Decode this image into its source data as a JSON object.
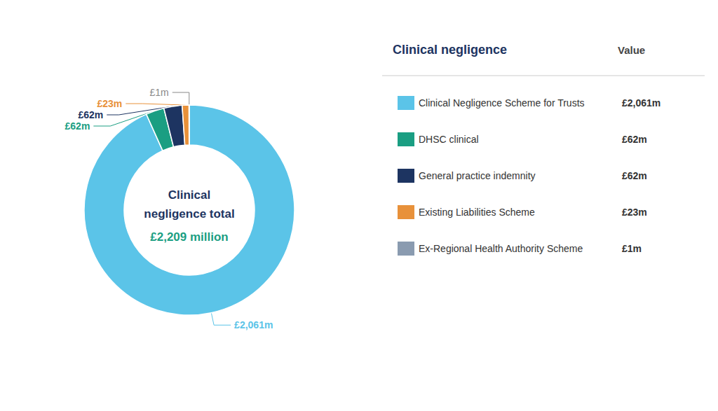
{
  "chart_data": {
    "type": "donut",
    "categories": [
      "Clinical Negligence Scheme for Trusts",
      "DHSC clinical",
      "General practice indemnity",
      "Existing Liabilities Scheme",
      "Ex-Regional Health Authority Scheme"
    ],
    "values": [
      2061,
      62,
      62,
      23,
      1
    ],
    "value_labels": [
      "£2,061m",
      "£62m",
      "£62m",
      "£23m",
      "£1m"
    ],
    "colors": [
      "#5bc4e8",
      "#1a9e82",
      "#1d3461",
      "#e8913a",
      "#8a9bb0"
    ],
    "label_colors": [
      "#5bc4e8",
      "#1a9e82",
      "#1d3461",
      "#e8913a",
      "#888888"
    ],
    "data_labels": true,
    "center_text": [
      {
        "text": "Clinical",
        "color": "#1d3461"
      },
      {
        "text": "negligence total",
        "color": "#1d3461"
      },
      {
        "text": "£2,209 million",
        "color": "#1a9e82"
      }
    ],
    "legend": "right",
    "legend_title": {
      "text": "Clinical negligence",
      "color": "#1d3461"
    },
    "legend_value_header": "Value"
  }
}
